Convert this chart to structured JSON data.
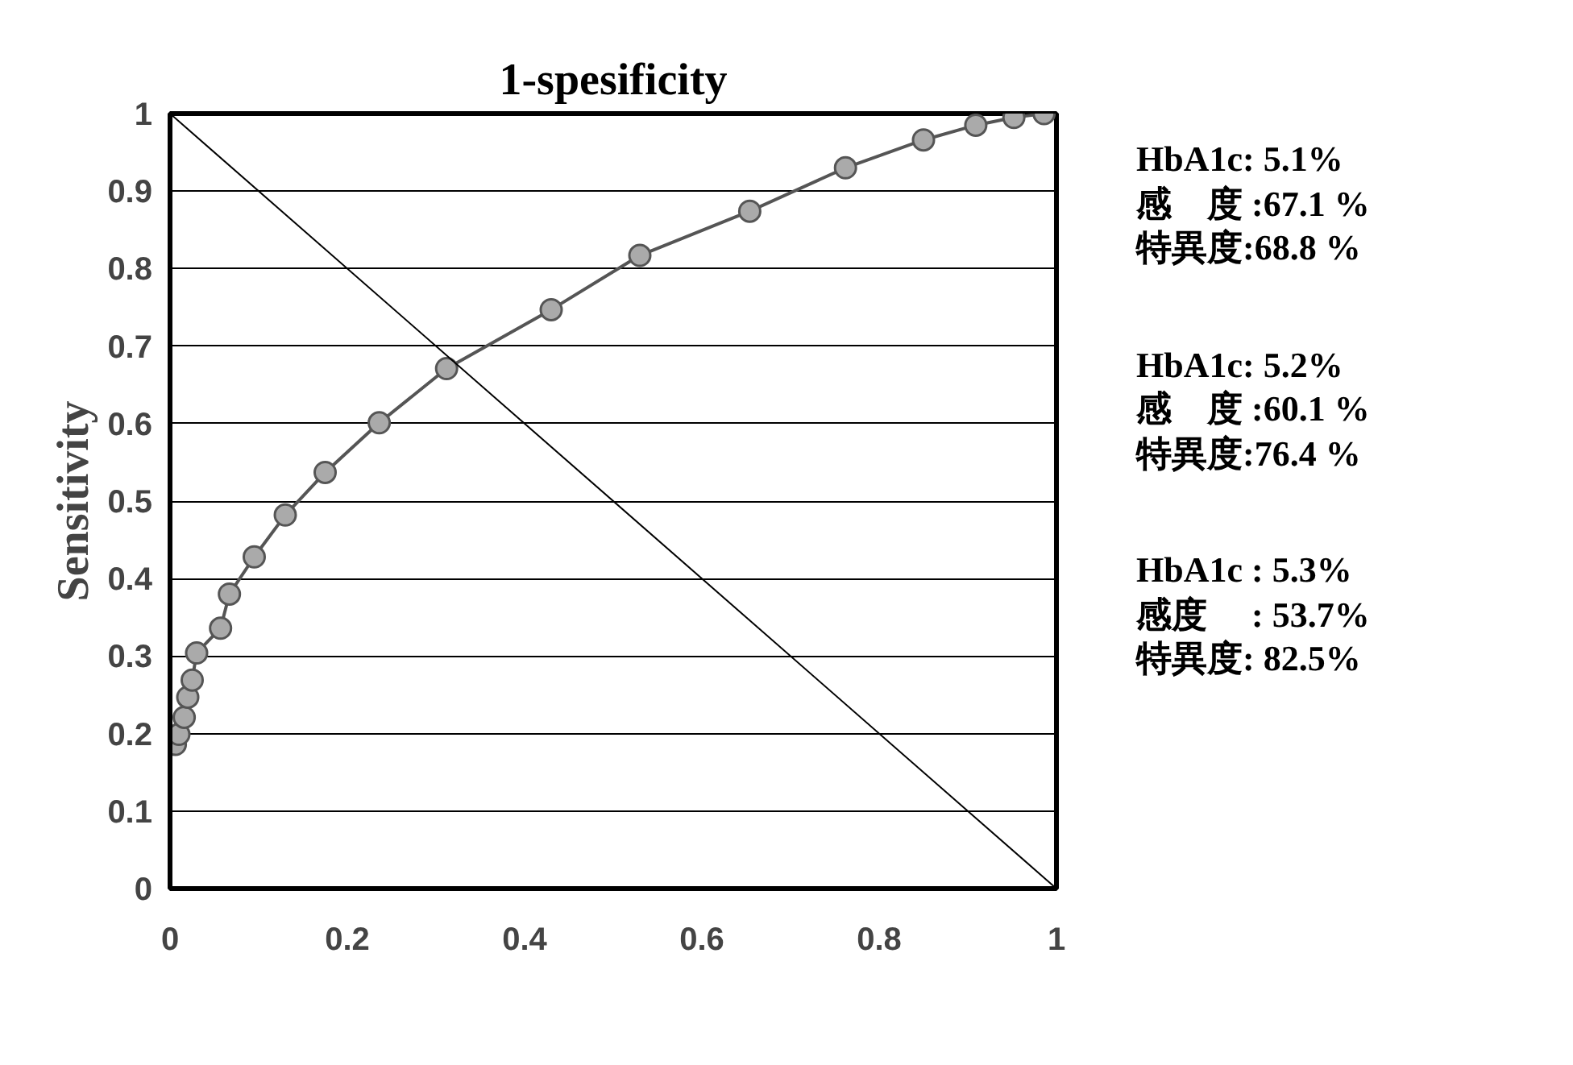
{
  "chart_data": {
    "type": "line",
    "title": "1-spesificity",
    "ylabel": "Sensitivity",
    "x": [
      0.006,
      0.01,
      0.016,
      0.02,
      0.025,
      0.03,
      0.057,
      0.067,
      0.095,
      0.13,
      0.175,
      0.236,
      0.312,
      0.43,
      0.53,
      0.654,
      0.762,
      0.85,
      0.909,
      0.952,
      0.986
    ],
    "series": [
      {
        "color": "#555555",
        "marker": "circle",
        "values": [
          0.186,
          0.199,
          0.221,
          0.247,
          0.269,
          0.304,
          0.336,
          0.38,
          0.428,
          0.482,
          0.537,
          0.601,
          0.671,
          0.747,
          0.817,
          0.874,
          0.93,
          0.966,
          0.985,
          0.995,
          1.0
        ]
      },
      {
        "color": "#000000",
        "marker": "none",
        "x": [
          0,
          1
        ],
        "values": [
          1,
          0
        ]
      }
    ],
    "xlim": [
      0,
      1
    ],
    "ylim": [
      0,
      1
    ],
    "xticks": [
      0,
      0.2,
      0.4,
      0.6,
      0.8,
      1
    ],
    "yticks": [
      0,
      0.1,
      0.2,
      0.3,
      0.4,
      0.5,
      0.6,
      0.7,
      0.8,
      0.9,
      1
    ],
    "grid": "y",
    "annotations": [
      "HbA1c: 5.1%\n感　度 :67.1 %\n特異度:68.8 %",
      "HbA1c: 5.2%\n感　度 :60.1 %\n特異度:76.4 %",
      "HbA1c : 5.3%\n感度　 : 53.7%\n特異度: 82.5%"
    ]
  }
}
